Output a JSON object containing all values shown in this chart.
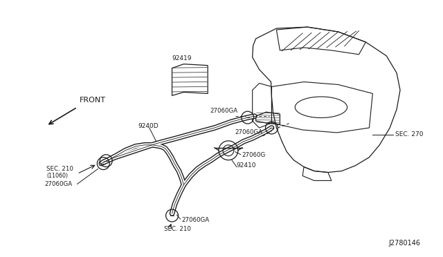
{
  "bg_color": "#ffffff",
  "line_color": "#1a1a1a",
  "figsize": [
    6.4,
    3.72
  ],
  "dpi": 100,
  "watermark": "J2780146",
  "front_label": "FRONT",
  "sec270_label": "SEC. 270",
  "label_92419": "92419",
  "label_9240D": "9240D",
  "label_92410": "92410",
  "label_27060GA": "27060GA",
  "label_27060G": "27060G",
  "label_sec210_a": "SEC. 210",
  "label_c11060": "(11060)",
  "label_sec210_b": "SEC. 210"
}
